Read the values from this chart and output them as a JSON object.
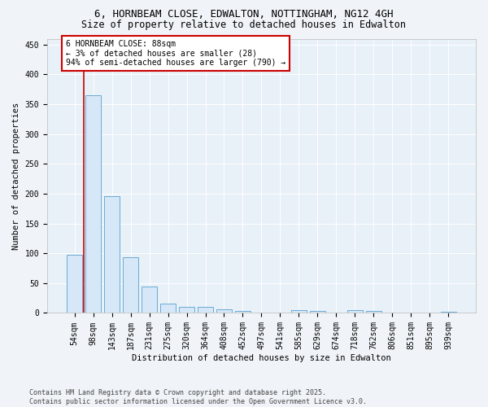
{
  "title_line1": "6, HORNBEAM CLOSE, EDWALTON, NOTTINGHAM, NG12 4GH",
  "title_line2": "Size of property relative to detached houses in Edwalton",
  "xlabel": "Distribution of detached houses by size in Edwalton",
  "ylabel": "Number of detached properties",
  "categories": [
    "54sqm",
    "98sqm",
    "143sqm",
    "187sqm",
    "231sqm",
    "275sqm",
    "320sqm",
    "364sqm",
    "408sqm",
    "452sqm",
    "497sqm",
    "541sqm",
    "585sqm",
    "629sqm",
    "674sqm",
    "718sqm",
    "762sqm",
    "806sqm",
    "851sqm",
    "895sqm",
    "939sqm"
  ],
  "values": [
    98,
    365,
    196,
    93,
    44,
    15,
    10,
    10,
    6,
    4,
    0,
    0,
    5,
    4,
    0,
    5,
    4,
    0,
    0,
    0,
    2
  ],
  "bar_color": "#d6e8f7",
  "bar_edge_color": "#6aaad4",
  "annotation_title": "6 HORNBEAM CLOSE: 88sqm",
  "annotation_line1": "← 3% of detached houses are smaller (28)",
  "annotation_line2": "94% of semi-detached houses are larger (790) →",
  "annotation_box_color": "#ffffff",
  "annotation_box_edge_color": "#cc0000",
  "vline_color": "#cc0000",
  "ylim": [
    0,
    460
  ],
  "yticks": [
    0,
    50,
    100,
    150,
    200,
    250,
    300,
    350,
    400,
    450
  ],
  "footer_line1": "Contains HM Land Registry data © Crown copyright and database right 2025.",
  "footer_line2": "Contains public sector information licensed under the Open Government Licence v3.0.",
  "bg_color": "#f0f4f8",
  "plot_bg_color": "#e8f0f8",
  "title_fontsize": 9,
  "subtitle_fontsize": 8.5,
  "axis_label_fontsize": 7.5,
  "tick_fontsize": 7,
  "annotation_fontsize": 7,
  "footer_fontsize": 6
}
